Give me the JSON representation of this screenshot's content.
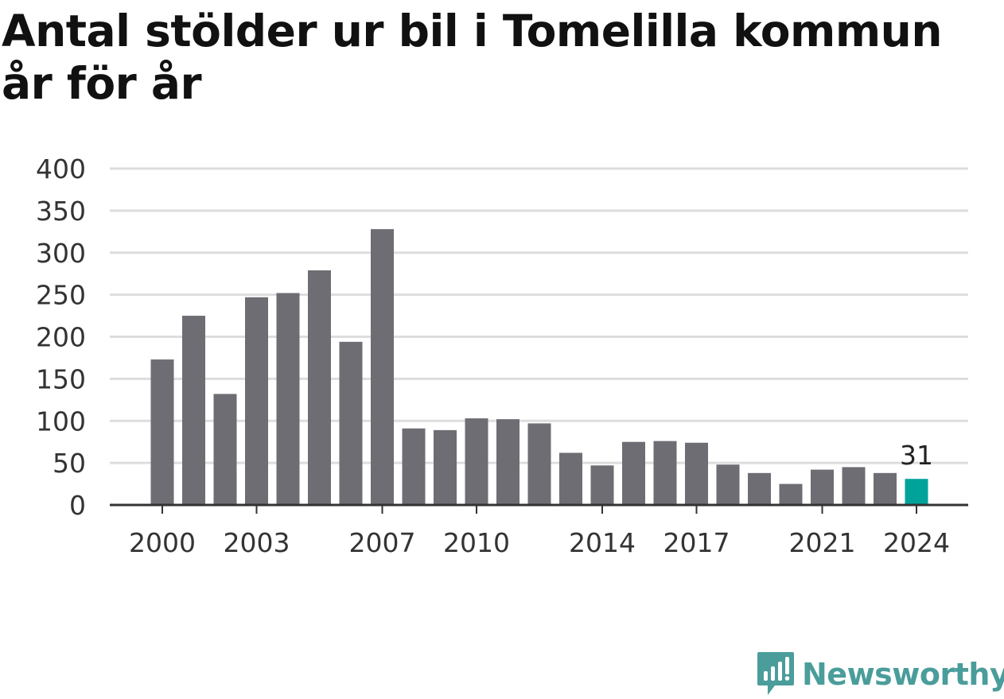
{
  "title": "Antal stölder ur bil i Tomelilla kommun år för år",
  "logo": {
    "text": "Newsworthy",
    "icon": "newsworthy-logo-icon",
    "color": "#4a9d9a"
  },
  "colors": {
    "bar": "#6d6d73",
    "highlight": "#00a39a",
    "grid": "#dddddd",
    "axis": "#333333"
  },
  "chart_data": {
    "type": "bar",
    "categories": [
      "2000",
      "2001",
      "2002",
      "2003",
      "2004",
      "2005",
      "2006",
      "2007",
      "2008",
      "2009",
      "2010",
      "2011",
      "2012",
      "2013",
      "2014",
      "2015",
      "2016",
      "2017",
      "2018",
      "2019",
      "2020",
      "2021",
      "2022",
      "2023",
      "2024"
    ],
    "values": [
      173,
      225,
      132,
      247,
      252,
      279,
      194,
      328,
      91,
      89,
      103,
      102,
      97,
      62,
      47,
      75,
      76,
      74,
      48,
      38,
      25,
      42,
      45,
      38,
      31
    ],
    "xtick_labels": [
      "2000",
      "2003",
      "2007",
      "2010",
      "2014",
      "2017",
      "2021",
      "2024"
    ],
    "yticks": [
      0,
      50,
      100,
      150,
      200,
      250,
      300,
      350,
      400
    ],
    "ylim": [
      0,
      400
    ],
    "highlight_category": "2024",
    "data_labels": [
      {
        "category": "2024",
        "text": "31"
      }
    ],
    "grid": true
  }
}
